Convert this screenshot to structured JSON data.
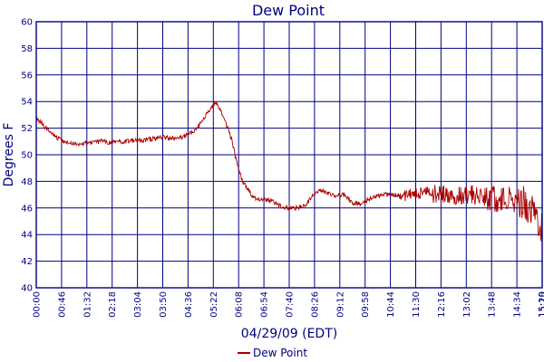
{
  "chart_data": {
    "type": "line",
    "title": "Dew Point",
    "xlabel": "04/29/09 (EDT)",
    "ylabel": "Degrees F",
    "ylim": [
      40,
      60
    ],
    "yticks": [
      40,
      42,
      44,
      46,
      48,
      50,
      52,
      54,
      56,
      58,
      60
    ],
    "xlim": [
      "00:00",
      "15:20"
    ],
    "xticks": [
      "00:00",
      "00:46",
      "01:32",
      "02:18",
      "03:04",
      "03:50",
      "04:36",
      "05:22",
      "06:08",
      "06:54",
      "07:40",
      "08:26",
      "09:12",
      "09:58",
      "10:44",
      "11:30",
      "12:16",
      "13:02",
      "13:48",
      "14:34",
      "15:19",
      "15:20"
    ],
    "grid": true,
    "legend": "bottom",
    "colors": {
      "series": "#aa0000",
      "frame": "#000080",
      "grid": "#000080"
    },
    "series": [
      {
        "name": "Dew Point",
        "points": [
          [
            "00:00",
            52.7
          ],
          [
            "00:10",
            52.4
          ],
          [
            "00:20",
            51.9
          ],
          [
            "00:30",
            51.5
          ],
          [
            "00:40",
            51.2
          ],
          [
            "00:50",
            51.0
          ],
          [
            "01:00",
            50.9
          ],
          [
            "01:15",
            50.8
          ],
          [
            "01:30",
            50.9
          ],
          [
            "01:45",
            51.0
          ],
          [
            "02:00",
            51.0
          ],
          [
            "02:15",
            50.9
          ],
          [
            "02:30",
            51.0
          ],
          [
            "02:45",
            51.0
          ],
          [
            "03:00",
            51.1
          ],
          [
            "03:15",
            51.1
          ],
          [
            "03:30",
            51.2
          ],
          [
            "03:45",
            51.3
          ],
          [
            "04:00",
            51.3
          ],
          [
            "04:15",
            51.2
          ],
          [
            "04:30",
            51.4
          ],
          [
            "04:45",
            51.7
          ],
          [
            "05:00",
            52.4
          ],
          [
            "05:10",
            53.1
          ],
          [
            "05:20",
            53.6
          ],
          [
            "05:27",
            53.9
          ],
          [
            "05:35",
            53.3
          ],
          [
            "05:45",
            52.3
          ],
          [
            "05:55",
            51.2
          ],
          [
            "06:05",
            49.3
          ],
          [
            "06:15",
            48.0
          ],
          [
            "06:25",
            47.4
          ],
          [
            "06:35",
            46.8
          ],
          [
            "06:45",
            46.6
          ],
          [
            "06:55",
            46.7
          ],
          [
            "07:10",
            46.5
          ],
          [
            "07:25",
            46.1
          ],
          [
            "07:40",
            46.0
          ],
          [
            "07:55",
            46.0
          ],
          [
            "08:10",
            46.2
          ],
          [
            "08:20",
            46.8
          ],
          [
            "08:35",
            47.3
          ],
          [
            "08:50",
            47.1
          ],
          [
            "09:05",
            46.9
          ],
          [
            "09:20",
            47.0
          ],
          [
            "09:35",
            46.4
          ],
          [
            "09:50",
            46.3
          ],
          [
            "10:05",
            46.7
          ],
          [
            "10:20",
            46.9
          ],
          [
            "10:35",
            47.0
          ],
          [
            "10:50",
            47.0
          ],
          [
            "11:05",
            46.9
          ],
          [
            "11:20",
            47.0
          ],
          [
            "11:35",
            47.1
          ],
          [
            "11:50",
            47.2
          ],
          [
            "12:05",
            47.1
          ],
          [
            "12:20",
            47.1
          ],
          [
            "12:35",
            47.0
          ],
          [
            "12:50",
            47.0
          ],
          [
            "13:05",
            46.9
          ],
          [
            "13:20",
            47.0
          ],
          [
            "13:35",
            46.8
          ],
          [
            "13:50",
            46.7
          ],
          [
            "14:05",
            46.7
          ],
          [
            "14:20",
            46.8
          ],
          [
            "14:35",
            46.5
          ],
          [
            "14:50",
            46.3
          ],
          [
            "15:00",
            46.0
          ],
          [
            "15:10",
            45.5
          ],
          [
            "15:20",
            44.3
          ]
        ]
      }
    ]
  },
  "legend": {
    "label": "Dew Point"
  }
}
